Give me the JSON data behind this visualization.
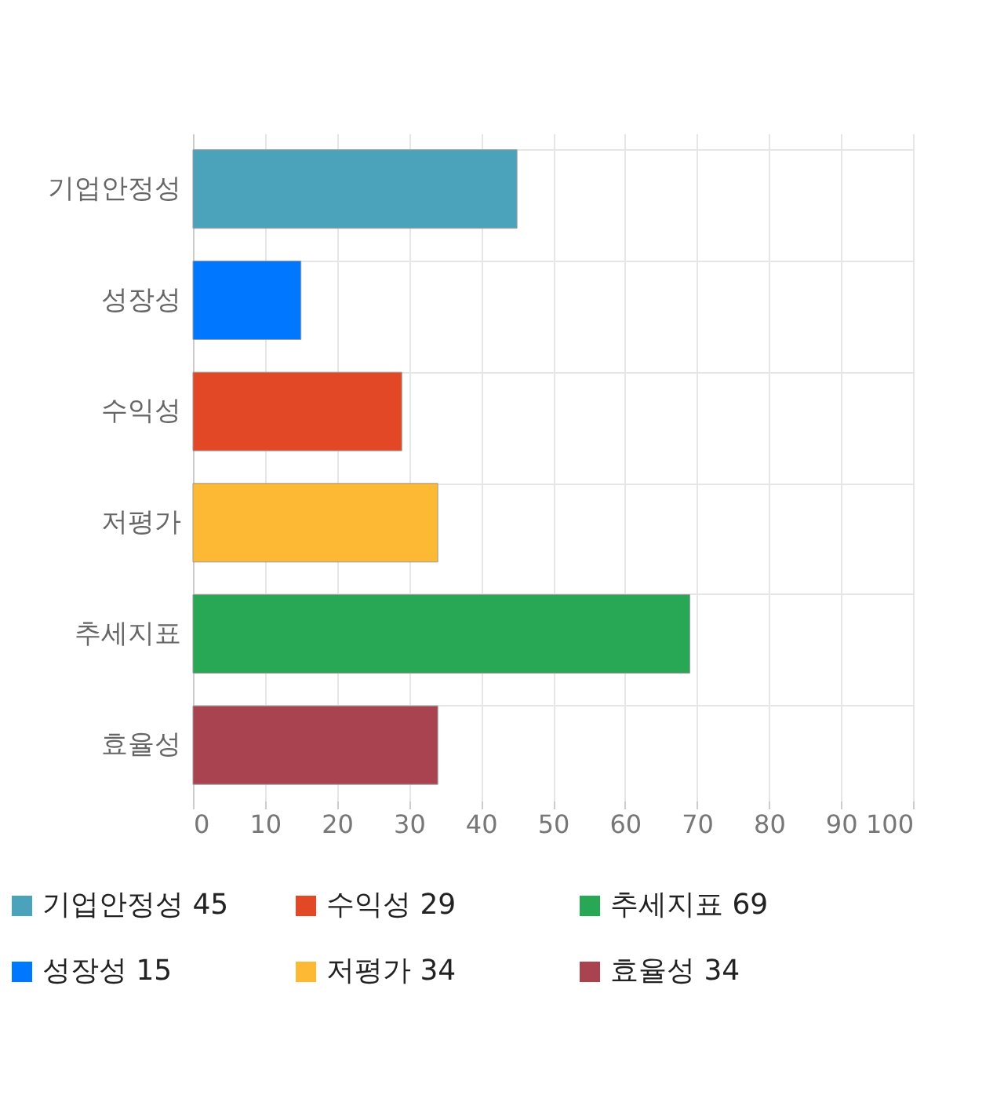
{
  "chart_data": {
    "type": "bar",
    "orientation": "horizontal",
    "categories": [
      "기업안정성",
      "성장성",
      "수익성",
      "저평가",
      "추세지표",
      "효율성"
    ],
    "series": [
      {
        "name": "기업안정성 45",
        "color": "#4aa3bb",
        "values": [
          45,
          null,
          null,
          null,
          null,
          null
        ]
      },
      {
        "name": "성장성 15",
        "color": "#0077ff",
        "values": [
          null,
          15,
          null,
          null,
          null,
          null
        ]
      },
      {
        "name": "수익성 29",
        "color": "#e34826",
        "values": [
          null,
          null,
          29,
          null,
          null,
          null
        ]
      },
      {
        "name": "저평가 34",
        "color": "#fdb933",
        "values": [
          null,
          null,
          null,
          34,
          null,
          null
        ]
      },
      {
        "name": "추세지표 69",
        "color": "#28a855",
        "values": [
          null,
          null,
          null,
          null,
          69,
          null
        ]
      },
      {
        "name": "효율성 34",
        "color": "#a8434f",
        "values": [
          null,
          null,
          null,
          null,
          null,
          34
        ]
      }
    ],
    "xlim": [
      0,
      100
    ],
    "xticks": [
      0,
      10,
      20,
      30,
      40,
      50,
      60,
      70,
      80,
      90,
      100
    ],
    "grid": true,
    "legend": "bottom left"
  }
}
